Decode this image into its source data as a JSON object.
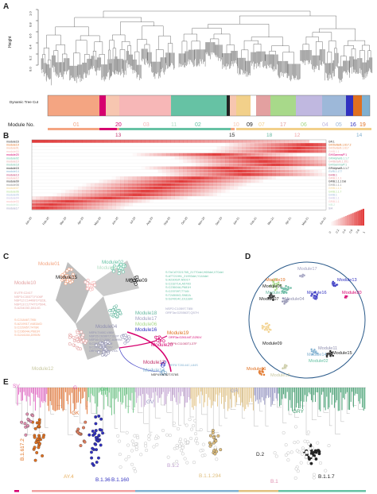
{
  "panels": {
    "A": {
      "letter": "A",
      "ylabel": "Height",
      "yticks": [
        "0.0",
        "0.2",
        "0.4",
        "0.6",
        "0.8",
        "1.0"
      ],
      "row_label": "Dynamic Tree Cut",
      "module_label": "Module No.",
      "module_numbers": [
        {
          "text": "01",
          "color": "#f4a582"
        },
        {
          "text": "20",
          "color": "#d6006f"
        },
        {
          "text": "03",
          "color": "#f7b7b7"
        },
        {
          "text": "11",
          "color": "#b8e0c8"
        },
        {
          "text": "02",
          "color": "#66c2a4"
        },
        {
          "text": "10",
          "color": "#f7c6b0"
        },
        {
          "text": "09",
          "color": "#222222"
        },
        {
          "text": "07",
          "color": "#f2d08a"
        },
        {
          "text": "17",
          "color": "#e3a0a0"
        },
        {
          "text": "06",
          "color": "#a8d98a"
        },
        {
          "text": "04",
          "color": "#c0b8e0"
        },
        {
          "text": "05",
          "color": "#9db8d9"
        },
        {
          "text": "16",
          "color": "#3030c0"
        },
        {
          "text": "19",
          "color": "#e07020"
        }
      ],
      "sub_numbers": [
        {
          "text": "13",
          "color": "#c0306a"
        },
        {
          "text": "15",
          "color": "#222222"
        },
        {
          "text": "18",
          "color": "#66b8a0"
        },
        {
          "text": "12",
          "color": "#f0a0a0"
        },
        {
          "text": "14",
          "color": "#80b0d0"
        }
      ]
    },
    "B": {
      "letter": "B",
      "rows": [
        "module16",
        "module19",
        "module01",
        "module03",
        "module20",
        "module02",
        "module10",
        "module18",
        "module15",
        "module14",
        "module13",
        "module12",
        "module09",
        "module08",
        "module07",
        "module06",
        "module05",
        "module04",
        "module03",
        "module11",
        "module17"
      ],
      "right_labels": [
        "GR.1",
        "GK/Delta/B.1.617.2",
        "GK/Delta/B.1.617",
        "GH/B.1.1",
        "GH/Gamma/P.1",
        "GR/Alpha/B.1.1.7",
        "GH/Beta/B.1.351",
        "GH/Gamma/P.1",
        "GR/Alpha/B.1.1.7",
        "GV/B.1.177",
        "GH/B.1",
        "GR/B.1.1.1",
        "GR/B.1.1.1 Del",
        "GH/B.1.1.1",
        "GH/B.1.1.1",
        "GH/B.1.1.7",
        "GH/B.1",
        "GH/B.1.1",
        "GR/B.1.1",
        "V/B.2",
        "S/A"
      ],
      "dates": [
        "Jan-20",
        "Feb-20",
        "Mar-20",
        "Apr-20",
        "May-20",
        "Jun-20",
        "Jul-20",
        "Aug-20",
        "Sep-20",
        "Oct-20",
        "Nov-20",
        "Dec-20",
        "Jan-21",
        "Feb-21",
        "Mar-21",
        "Apr-21",
        "May-21",
        "Jun-21"
      ],
      "legend_ticks": [
        "1",
        "0.8",
        "0.6",
        "0.4",
        "0.2",
        "0"
      ],
      "heat_color": "#e03030"
    },
    "C": {
      "letter": "C",
      "labels": [
        {
          "text": "Module01",
          "color": "#f4a582"
        },
        {
          "text": "Module02",
          "color": "#66c2a4"
        },
        {
          "text": "Module11",
          "color": "#b8e0c8"
        },
        {
          "text": "Module15",
          "color": "#222222"
        },
        {
          "text": "Module09",
          "color": "#222222"
        },
        {
          "text": "Module10",
          "color": "#e3a0a0"
        },
        {
          "text": "Module18",
          "color": "#66b8a0"
        },
        {
          "text": "Module17",
          "color": "#a0a0c0"
        },
        {
          "text": "Module06",
          "color": "#a8d98a"
        },
        {
          "text": "Module04",
          "color": "#9090b0"
        },
        {
          "text": "Module16",
          "color": "#3030c0"
        },
        {
          "text": "Module19",
          "color": "#e07020"
        },
        {
          "text": "Module20",
          "color": "#d6006f"
        },
        {
          "text": "Module13",
          "color": "#c0306a"
        },
        {
          "text": "Module14",
          "color": "#80b0d0"
        },
        {
          "text": "Module12",
          "color": "#c8c8a0"
        }
      ],
      "mutations_m10": [
        "5'UTR:C241T",
        "NSP3:C3037T,F106F",
        "NSP12:C14408T,P323L",
        "NSP13:C17747T,P504L",
        "S:A23403G,D614G"
      ],
      "mutations_m01": [
        "S:C21846T,T95I",
        "S:A21991T,V483A/D",
        "S:C22995T,T478K",
        "S:C23604A,P681R",
        "S:G24410A,D950N"
      ],
      "mutations_m02": [
        "S:TACATG21765_21770del,H69del,V70del",
        "S:ATT21991_21993del,Y144del",
        "S:A23063T,N501Y",
        "S:C23271A,A570D",
        "S:C23604A,P681H",
        "S:C23709T,T716I",
        "S:T24506G,S982A",
        "S:G24914C,D1118H"
      ],
      "mutations_m17": [
        "NSP2:C1059T,T85I",
        "ORF3a:G25563T,Q57H"
      ],
      "mutations_m04": [
        "NSP4:T445C,V86V",
        "NSP15:C6286T,T1189T",
        "NSP16:G21255C,A1999A",
        "S:C22227T,A222V",
        "S:C28932T,A220V",
        "ORF10:G29645T,V30L"
      ],
      "mutations_m20": [
        "ORF3a:G26144T,G251V"
      ],
      "mutations_m13": [
        "NSP6:C11083T,L37F"
      ],
      "mutations_m14": [
        "ORF8:T28144C,L84S"
      ],
      "mutations_m15": [
        "NSP4:C8782T,S76S"
      ]
    },
    "D": {
      "letter": "D",
      "labels": [
        {
          "text": "Module17",
          "color": "#a0a0c0"
        },
        {
          "text": "Module19",
          "color": "#e07020"
        },
        {
          "text": "Module06",
          "color": "#222222"
        },
        {
          "text": "Module18",
          "color": "#66b8a0"
        },
        {
          "text": "Module16",
          "color": "#3030c0"
        },
        {
          "text": "Module07",
          "color": "#222222"
        },
        {
          "text": "Module04",
          "color": "#9090b0"
        },
        {
          "text": "Module13",
          "color": "#3030c0"
        },
        {
          "text": "Module20",
          "color": "#d6006f"
        },
        {
          "text": "Module09",
          "color": "#222222"
        },
        {
          "text": "Module11",
          "color": "#9090b0"
        },
        {
          "text": "Module15",
          "color": "#222222"
        },
        {
          "text": "Module02",
          "color": "#66c2a4"
        },
        {
          "text": "Module01",
          "color": "#e07020"
        },
        {
          "text": "Module12",
          "color": "#c8c8a0"
        },
        {
          "text": "Module14",
          "color": "#80b0d0"
        }
      ]
    },
    "E": {
      "letter": "E",
      "clade_labels": [
        {
          "text": "SV",
          "color": "#e060c0"
        },
        {
          "text": "G",
          "color": "#e060c0"
        },
        {
          "text": "GH",
          "color": "#66c280"
        },
        {
          "text": "GK",
          "color": "#e07030"
        },
        {
          "text": "GV",
          "color": "#9090c0"
        },
        {
          "text": "GR",
          "color": "#a0a0c0"
        },
        {
          "text": "GRY",
          "color": "#3a9a6a"
        }
      ],
      "lineage_labels": [
        {
          "text": "B.1.617.2",
          "color": "#e07020"
        },
        {
          "text": "AY.4",
          "color": "#e8b060"
        },
        {
          "text": "B.1.36",
          "color": "#3030c0"
        },
        {
          "text": "B.1.160",
          "color": "#3030c0"
        },
        {
          "text": "B.1.2",
          "color": "#c0a0d0"
        },
        {
          "text": "B.1.1.294",
          "color": "#e0c080"
        },
        {
          "text": "D.2",
          "color": "#222222"
        },
        {
          "text": "B.1.1.7",
          "color": "#222222"
        },
        {
          "text": "B.1",
          "color": "#e090b0"
        }
      ],
      "bottom_bar_colors": [
        "#d6006f",
        "#f0a0a0",
        "#80b0d0",
        "#e0c080",
        "#66c2a4",
        "#9db8d9"
      ]
    }
  }
}
